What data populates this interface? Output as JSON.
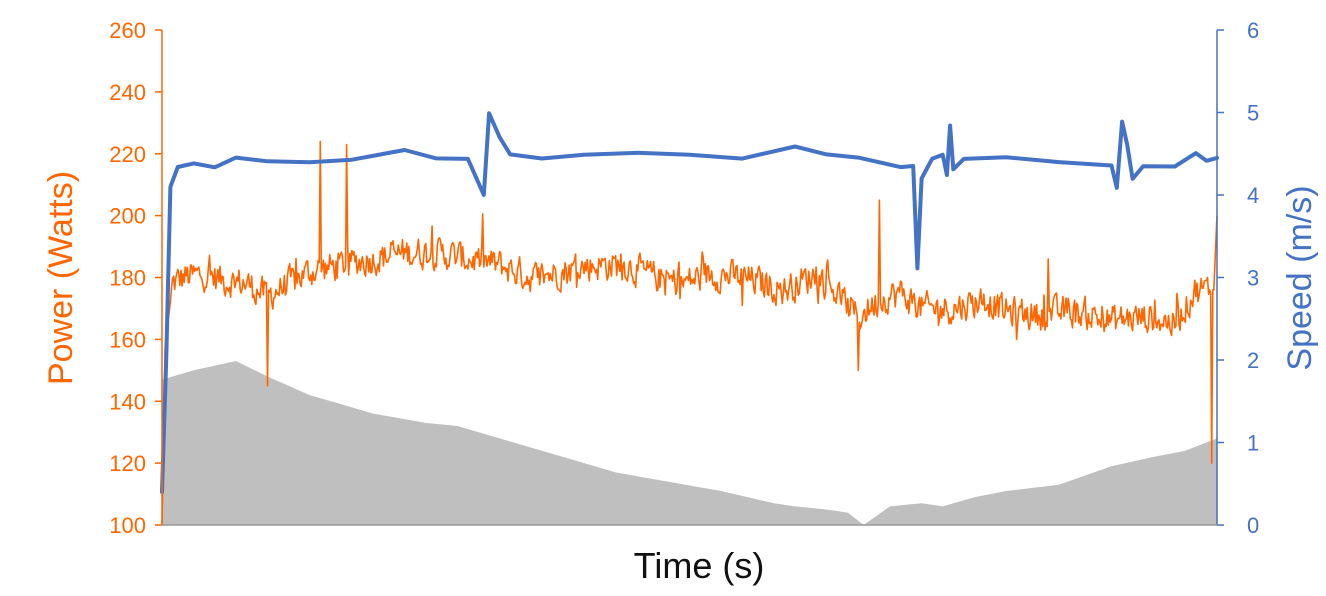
{
  "chart_data": {
    "type": "line",
    "xlabel": "Time (s)",
    "y_left": {
      "label": "Power (Watts)",
      "range": [
        100,
        260
      ],
      "ticks": [
        "100",
        "120",
        "140",
        "160",
        "180",
        "200",
        "220",
        "240",
        "260"
      ],
      "color": "#FF6600"
    },
    "y_right": {
      "label": "Speed (m/s)",
      "range": [
        0,
        6
      ],
      "ticks": [
        "0",
        "1",
        "2",
        "3",
        "4",
        "5",
        "6"
      ],
      "color": "#4472C4"
    },
    "x_range": [
      0,
      100
    ],
    "grid": false,
    "legend": "none",
    "series": [
      {
        "axis": "left",
        "style": "area",
        "color": "#BFBFBF",
        "points": [
          [
            0,
            147
          ],
          [
            3,
            150
          ],
          [
            7,
            153
          ],
          [
            10,
            148
          ],
          [
            14,
            142
          ],
          [
            17,
            139
          ],
          [
            20,
            136
          ],
          [
            25,
            133
          ],
          [
            28,
            132
          ],
          [
            33,
            127
          ],
          [
            38,
            122
          ],
          [
            43,
            117
          ],
          [
            48,
            114
          ],
          [
            53,
            111
          ],
          [
            58,
            107
          ],
          [
            60,
            106
          ],
          [
            63,
            105
          ],
          [
            65,
            104
          ],
          [
            66.5,
            100
          ],
          [
            69,
            106
          ],
          [
            72,
            107
          ],
          [
            74,
            106
          ],
          [
            77,
            109
          ],
          [
            80,
            111
          ],
          [
            85,
            113
          ],
          [
            90,
            119
          ],
          [
            94,
            122
          ],
          [
            97,
            124
          ],
          [
            100,
            128
          ]
        ]
      },
      {
        "axis": "left",
        "style": "noisy-line",
        "color": "#FF6600",
        "noise": 7,
        "points": [
          [
            0,
            100
          ],
          [
            0.3,
            158
          ],
          [
            1,
            178
          ],
          [
            2,
            180
          ],
          [
            4,
            181
          ],
          [
            6,
            179
          ],
          [
            8,
            178
          ],
          [
            10,
            174
          ],
          [
            12,
            178
          ],
          [
            14,
            182
          ],
          [
            17,
            184
          ],
          [
            20,
            186
          ],
          [
            23,
            188
          ],
          [
            26,
            188
          ],
          [
            29,
            186
          ],
          [
            32,
            184
          ],
          [
            35,
            180
          ],
          [
            38,
            182
          ],
          [
            41,
            184
          ],
          [
            44,
            184
          ],
          [
            46,
            181
          ],
          [
            49,
            178
          ],
          [
            52,
            181
          ],
          [
            55,
            180
          ],
          [
            57,
            178
          ],
          [
            59,
            176
          ],
          [
            62,
            181
          ],
          [
            64,
            175
          ],
          [
            66,
            167
          ],
          [
            68,
            173
          ],
          [
            70,
            175
          ],
          [
            72,
            170
          ],
          [
            75,
            170
          ],
          [
            78,
            173
          ],
          [
            80,
            169
          ],
          [
            83,
            168
          ],
          [
            86,
            169
          ],
          [
            88,
            168
          ],
          [
            90,
            166
          ],
          [
            92,
            167
          ],
          [
            94,
            167
          ],
          [
            96,
            165
          ],
          [
            98,
            176
          ],
          [
            99.7,
            176
          ],
          [
            100,
            200
          ]
        ],
        "spikes": [
          [
            15,
            224
          ],
          [
            17.5,
            223
          ],
          [
            10,
            145
          ],
          [
            49,
            185
          ],
          [
            55,
            171
          ],
          [
            66,
            150
          ],
          [
            68,
            205
          ],
          [
            81,
            160
          ],
          [
            84,
            186
          ],
          [
            89,
            164
          ],
          [
            99.5,
            120
          ]
        ]
      },
      {
        "axis": "right",
        "style": "line",
        "color": "#4472C4",
        "points": [
          [
            0,
            0.4
          ],
          [
            0.4,
            2
          ],
          [
            0.8,
            4.1
          ],
          [
            1.5,
            4.35
          ],
          [
            3,
            4.38
          ],
          [
            5,
            4.35
          ],
          [
            7,
            4.45
          ],
          [
            10,
            4.4
          ],
          [
            14,
            4.4
          ],
          [
            18,
            4.42
          ],
          [
            23,
            4.55
          ],
          [
            26,
            4.45
          ],
          [
            29,
            4.45
          ],
          [
            30.5,
            4.0
          ],
          [
            31,
            5.0
          ],
          [
            32,
            4.7
          ],
          [
            33,
            4.5
          ],
          [
            36,
            4.45
          ],
          [
            40,
            4.5
          ],
          [
            45,
            4.5
          ],
          [
            50,
            4.5
          ],
          [
            55,
            4.45
          ],
          [
            60,
            4.6
          ],
          [
            63,
            4.5
          ],
          [
            66,
            4.45
          ],
          [
            70,
            4.35
          ],
          [
            71.2,
            4.35
          ],
          [
            71.6,
            3.1
          ],
          [
            72,
            4.2
          ],
          [
            73,
            4.45
          ],
          [
            74,
            4.5
          ],
          [
            74.4,
            4.25
          ],
          [
            74.7,
            4.85
          ],
          [
            75,
            4.3
          ],
          [
            76,
            4.45
          ],
          [
            80,
            4.45
          ],
          [
            85,
            4.4
          ],
          [
            90,
            4.35
          ],
          [
            90.5,
            4.1
          ],
          [
            91,
            4.9
          ],
          [
            91.5,
            4.6
          ],
          [
            92,
            4.2
          ],
          [
            93,
            4.35
          ],
          [
            96,
            4.35
          ],
          [
            98,
            4.5
          ],
          [
            99,
            4.4
          ],
          [
            100,
            4.45
          ]
        ]
      }
    ]
  }
}
